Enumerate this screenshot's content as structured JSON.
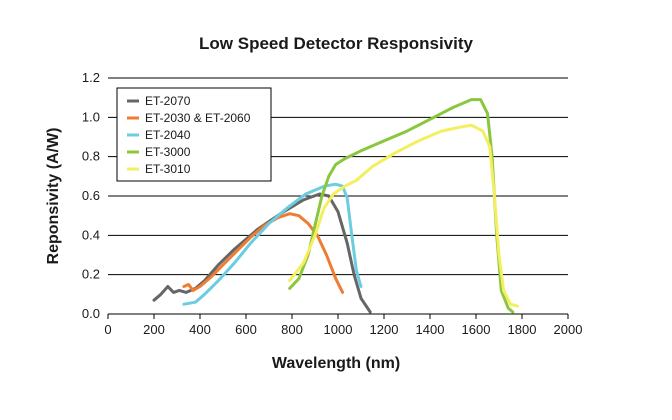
{
  "chart_data": {
    "type": "line",
    "title": "Low Speed Detector Responsivity",
    "xlabel": "Wavelength (nm)",
    "ylabel": "Reponsivity (A/W)",
    "xlim": [
      0,
      2000
    ],
    "ylim": [
      0,
      1.2
    ],
    "xticks": [
      0,
      200,
      400,
      600,
      800,
      1000,
      1200,
      1400,
      1600,
      1800,
      2000
    ],
    "yticks": [
      "0.0",
      "0.2",
      "0.4",
      "0.6",
      "0.8",
      "1.0",
      "1.2"
    ],
    "grid": "horizontal",
    "legend_position": "top-left",
    "series": [
      {
        "name": "ET-2070",
        "color": "#666666",
        "points": [
          [
            200,
            0.07
          ],
          [
            230,
            0.1
          ],
          [
            260,
            0.14
          ],
          [
            285,
            0.11
          ],
          [
            310,
            0.12
          ],
          [
            340,
            0.11
          ],
          [
            380,
            0.13
          ],
          [
            420,
            0.17
          ],
          [
            480,
            0.25
          ],
          [
            550,
            0.33
          ],
          [
            650,
            0.43
          ],
          [
            750,
            0.51
          ],
          [
            850,
            0.58
          ],
          [
            920,
            0.61
          ],
          [
            960,
            0.6
          ],
          [
            1000,
            0.52
          ],
          [
            1040,
            0.36
          ],
          [
            1070,
            0.2
          ],
          [
            1100,
            0.08
          ],
          [
            1140,
            0.01
          ]
        ]
      },
      {
        "name": "ET-2030 & ET-2060",
        "color": "#ee7d31",
        "points": [
          [
            330,
            0.14
          ],
          [
            350,
            0.15
          ],
          [
            370,
            0.12
          ],
          [
            400,
            0.14
          ],
          [
            450,
            0.19
          ],
          [
            500,
            0.25
          ],
          [
            560,
            0.32
          ],
          [
            620,
            0.39
          ],
          [
            680,
            0.45
          ],
          [
            740,
            0.49
          ],
          [
            790,
            0.51
          ],
          [
            830,
            0.5
          ],
          [
            870,
            0.46
          ],
          [
            910,
            0.4
          ],
          [
            950,
            0.3
          ],
          [
            990,
            0.18
          ],
          [
            1020,
            0.11
          ]
        ]
      },
      {
        "name": "ET-2040",
        "color": "#6ccce0",
        "points": [
          [
            330,
            0.05
          ],
          [
            380,
            0.06
          ],
          [
            420,
            0.1
          ],
          [
            480,
            0.17
          ],
          [
            550,
            0.26
          ],
          [
            620,
            0.36
          ],
          [
            700,
            0.46
          ],
          [
            780,
            0.54
          ],
          [
            860,
            0.61
          ],
          [
            940,
            0.65
          ],
          [
            990,
            0.66
          ],
          [
            1020,
            0.65
          ],
          [
            1040,
            0.59
          ],
          [
            1060,
            0.4
          ],
          [
            1080,
            0.22
          ],
          [
            1100,
            0.14
          ]
        ]
      },
      {
        "name": "ET-3000",
        "color": "#8bc63f",
        "points": [
          [
            790,
            0.13
          ],
          [
            830,
            0.18
          ],
          [
            870,
            0.3
          ],
          [
            900,
            0.45
          ],
          [
            930,
            0.6
          ],
          [
            960,
            0.7
          ],
          [
            990,
            0.76
          ],
          [
            1030,
            0.79
          ],
          [
            1100,
            0.83
          ],
          [
            1200,
            0.88
          ],
          [
            1300,
            0.93
          ],
          [
            1400,
            0.99
          ],
          [
            1500,
            1.05
          ],
          [
            1580,
            1.09
          ],
          [
            1620,
            1.09
          ],
          [
            1650,
            1.02
          ],
          [
            1670,
            0.8
          ],
          [
            1690,
            0.4
          ],
          [
            1710,
            0.12
          ],
          [
            1740,
            0.03
          ],
          [
            1760,
            0.01
          ]
        ]
      },
      {
        "name": "ET-3010",
        "color": "#f4ef5e",
        "points": [
          [
            790,
            0.17
          ],
          [
            850,
            0.26
          ],
          [
            900,
            0.4
          ],
          [
            940,
            0.54
          ],
          [
            980,
            0.61
          ],
          [
            1030,
            0.65
          ],
          [
            1080,
            0.68
          ],
          [
            1150,
            0.75
          ],
          [
            1250,
            0.82
          ],
          [
            1350,
            0.88
          ],
          [
            1450,
            0.93
          ],
          [
            1530,
            0.95
          ],
          [
            1580,
            0.96
          ],
          [
            1630,
            0.93
          ],
          [
            1660,
            0.85
          ],
          [
            1680,
            0.6
          ],
          [
            1700,
            0.3
          ],
          [
            1720,
            0.12
          ],
          [
            1750,
            0.05
          ],
          [
            1780,
            0.04
          ]
        ]
      }
    ]
  }
}
